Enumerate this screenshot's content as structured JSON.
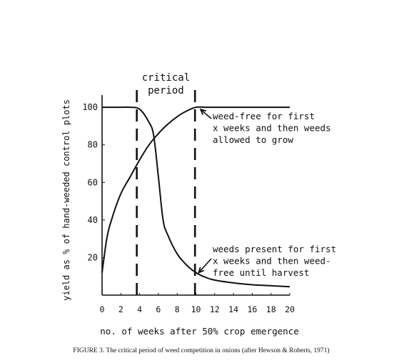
{
  "figure_caption": "FIGURE 3.   The critical period of weed competition in onions (after Hewson & Roberts, 1971)",
  "chart_data": {
    "type": "line",
    "title": "",
    "xlabel": "no. of weeks after 50% crop emergence",
    "ylabel": "yield as % of hand-weeded control plots",
    "xlim": [
      0,
      20
    ],
    "ylim": [
      0,
      105
    ],
    "x_ticks": [
      0,
      2,
      4,
      6,
      8,
      10,
      12,
      14,
      16,
      18,
      20
    ],
    "y_ticks": [
      20,
      40,
      60,
      80,
      100
    ],
    "grid": false,
    "legend": "none",
    "series": [
      {
        "key": "weed_free",
        "x": [
          0,
          0.5,
          1,
          2,
          3,
          4,
          5,
          6,
          7,
          8,
          9,
          10,
          11,
          12,
          14,
          16,
          18,
          20
        ],
        "y": [
          12,
          30,
          40,
          54,
          63,
          72,
          80,
          86,
          91,
          95,
          98,
          100,
          100,
          100,
          100,
          100,
          100,
          100
        ]
      },
      {
        "key": "weeds_present",
        "x": [
          0,
          1,
          2,
          3,
          4,
          5,
          5.5,
          6,
          6.5,
          7,
          8,
          9,
          10,
          11,
          12,
          14,
          16,
          18,
          20
        ],
        "y": [
          100,
          100,
          100,
          100,
          99,
          92,
          85,
          63,
          40,
          32,
          22,
          16,
          12,
          9.5,
          8,
          6.5,
          5.5,
          5,
          4.5
        ]
      }
    ],
    "critical_period": {
      "label_line1": "critical",
      "label_line2": "period",
      "start_week": 3.7,
      "end_week": 9.9
    },
    "annotations": [
      {
        "series": "weed_free",
        "lines": [
          "weed-free for first",
          "x weeks and then weeds",
          "allowed to grow"
        ],
        "point_x": 10.5,
        "point_y": 100
      },
      {
        "series": "weeds_present",
        "lines": [
          "weeds present for first",
          "x weeks and then weed-",
          "free until harvest"
        ],
        "point_x": 10.3,
        "point_y": 12
      }
    ]
  }
}
